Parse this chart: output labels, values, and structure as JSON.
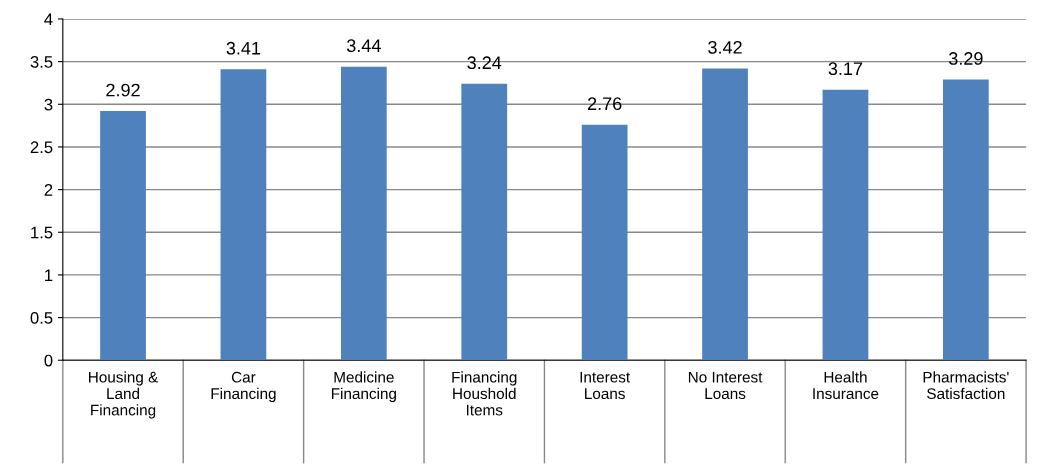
{
  "chart_data": {
    "type": "bar",
    "categories": [
      "Housing &\nLand\nFinancing",
      "Car\nFinancing",
      "Medicine\nFinancing",
      "Financing\nHoushold\nItems",
      "Interest\nLoans",
      "No Interest\nLoans",
      "Health\nInsurance",
      "Pharmacists'\nSatisfaction"
    ],
    "values": [
      2.92,
      3.41,
      3.44,
      3.24,
      2.76,
      3.42,
      3.17,
      3.29
    ],
    "color": "#4f81bd",
    "ylim": [
      0,
      4
    ],
    "yticks": [
      0,
      0.5,
      1,
      1.5,
      2,
      2.5,
      3,
      3.5,
      4
    ],
    "grid": "y",
    "data_labels": true
  }
}
